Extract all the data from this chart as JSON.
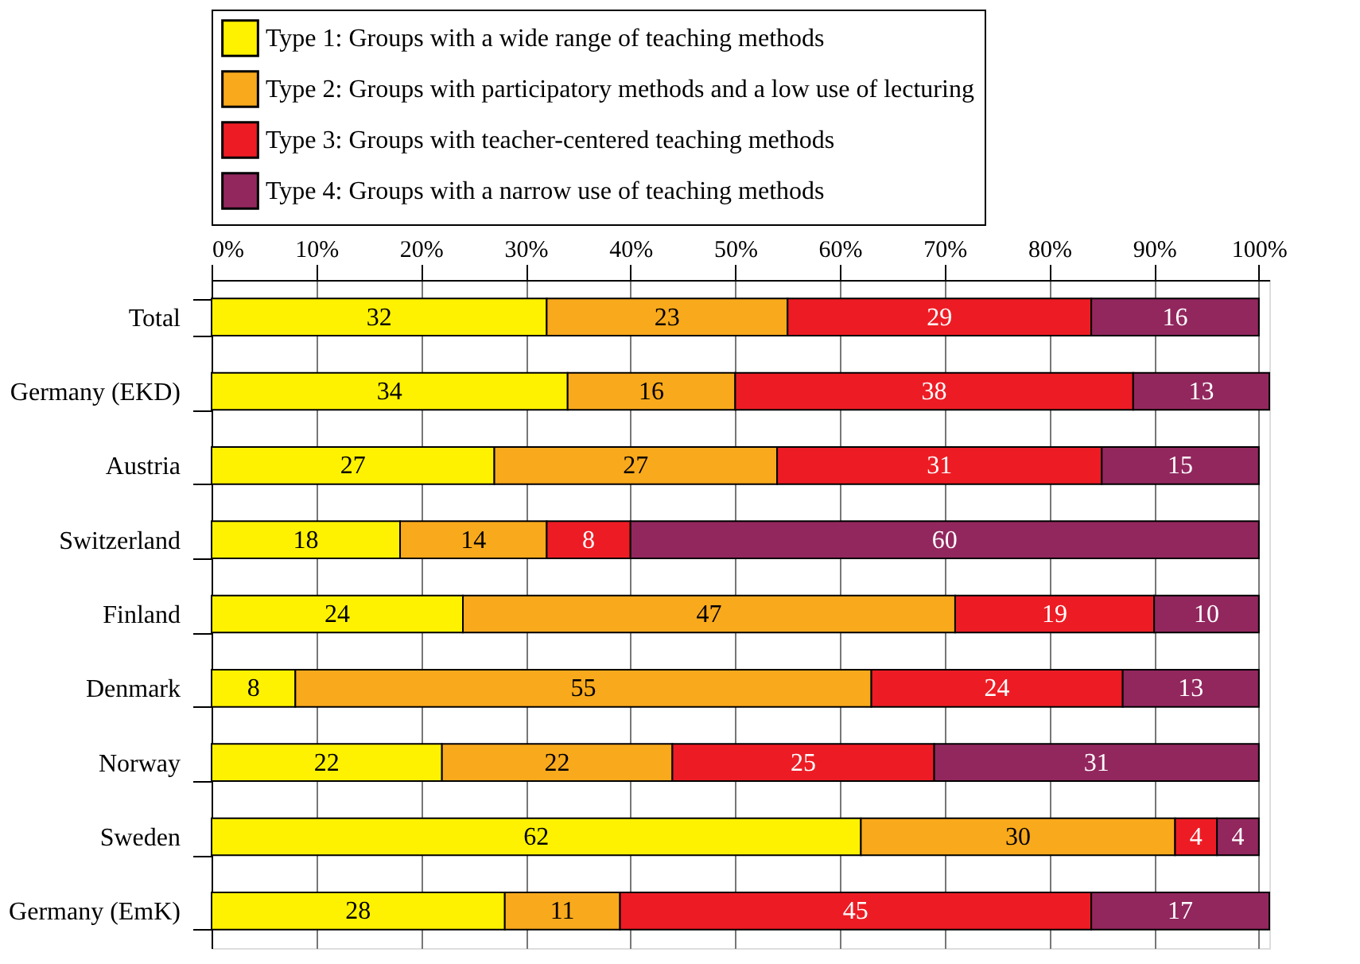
{
  "chart_data": {
    "type": "bar",
    "orientation": "horizontal",
    "stacked": true,
    "data_labels": true,
    "legend": "top",
    "grid": "x",
    "categories": [
      "Total",
      "Germany (EKD)",
      "Austria",
      "Switzerland",
      "Finland",
      "Denmark",
      "Norway",
      "Sweden",
      "Germany (EmK)"
    ],
    "xlim": [
      0,
      101
    ],
    "xticks": [
      {
        "value": 0,
        "label": "0%"
      },
      {
        "value": 10,
        "label": "10%"
      },
      {
        "value": 20,
        "label": "20%"
      },
      {
        "value": 30,
        "label": "30%"
      },
      {
        "value": 40,
        "label": "40%"
      },
      {
        "value": 50,
        "label": "50%"
      },
      {
        "value": 60,
        "label": "60%"
      },
      {
        "value": 70,
        "label": "70%"
      },
      {
        "value": 80,
        "label": "80%"
      },
      {
        "value": 90,
        "label": "90%"
      },
      {
        "value": 100,
        "label": "100%"
      }
    ],
    "series": [
      {
        "name": "Type 1: Groups with a wide range of teaching methods",
        "color": "#fff200",
        "values": [
          32,
          34,
          27,
          18,
          24,
          8,
          22,
          62,
          28
        ]
      },
      {
        "name": "Type 2: Groups with participatory methods and a low use of lecturing",
        "color": "#f9a91c",
        "values": [
          23,
          16,
          27,
          14,
          47,
          55,
          22,
          30,
          11
        ]
      },
      {
        "name": "Type 3: Groups with teacher-centered teaching methods",
        "color": "#ed1c24",
        "values": [
          29,
          38,
          31,
          8,
          19,
          24,
          25,
          4,
          45
        ]
      },
      {
        "name": "Type 4: Groups with a narrow use of teaching methods",
        "color": "#92275e",
        "values": [
          16,
          13,
          15,
          60,
          10,
          13,
          31,
          4,
          17
        ]
      }
    ]
  }
}
